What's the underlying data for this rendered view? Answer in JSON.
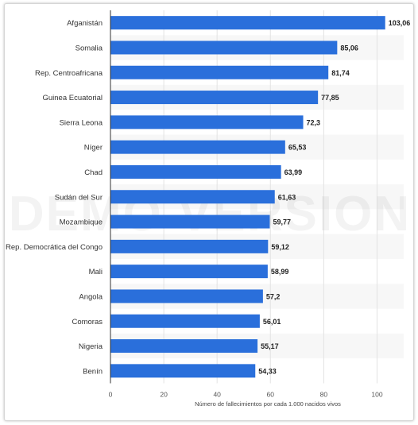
{
  "chart_data": {
    "type": "bar",
    "orientation": "horizontal",
    "categories": [
      "Afganistán",
      "Somalia",
      "Rep. Centroafricana",
      "Guinea Ecuatorial",
      "Sierra Leona",
      "Níger",
      "Chad",
      "Sudán del Sur",
      "Mozambique",
      "Rep. Democrática del Congo",
      "Mali",
      "Angola",
      "Comoras",
      "Nigeria",
      "Benín"
    ],
    "values": [
      103.06,
      85.06,
      81.74,
      77.85,
      72.3,
      65.53,
      63.99,
      61.63,
      59.77,
      59.12,
      58.99,
      57.2,
      56.01,
      55.17,
      54.33
    ],
    "value_labels": [
      "103,06",
      "85,06",
      "81,74",
      "77,85",
      "72,3",
      "65,53",
      "63,99",
      "61,63",
      "59,77",
      "59,12",
      "58,99",
      "57,2",
      "56,01",
      "55,17",
      "54,33"
    ],
    "xlabel": "Número de fallecimientos por cada 1.000 nacidos vivos",
    "ylabel": "",
    "title": "",
    "xlim": [
      0,
      110
    ],
    "x_ticks": [
      0,
      20,
      40,
      60,
      80,
      100
    ],
    "x_tick_labels": [
      "0",
      "20",
      "40",
      "60",
      "80",
      "100"
    ],
    "grid": true,
    "bar_color": "#2a6fdb",
    "watermark": "DEMO VERSION"
  }
}
